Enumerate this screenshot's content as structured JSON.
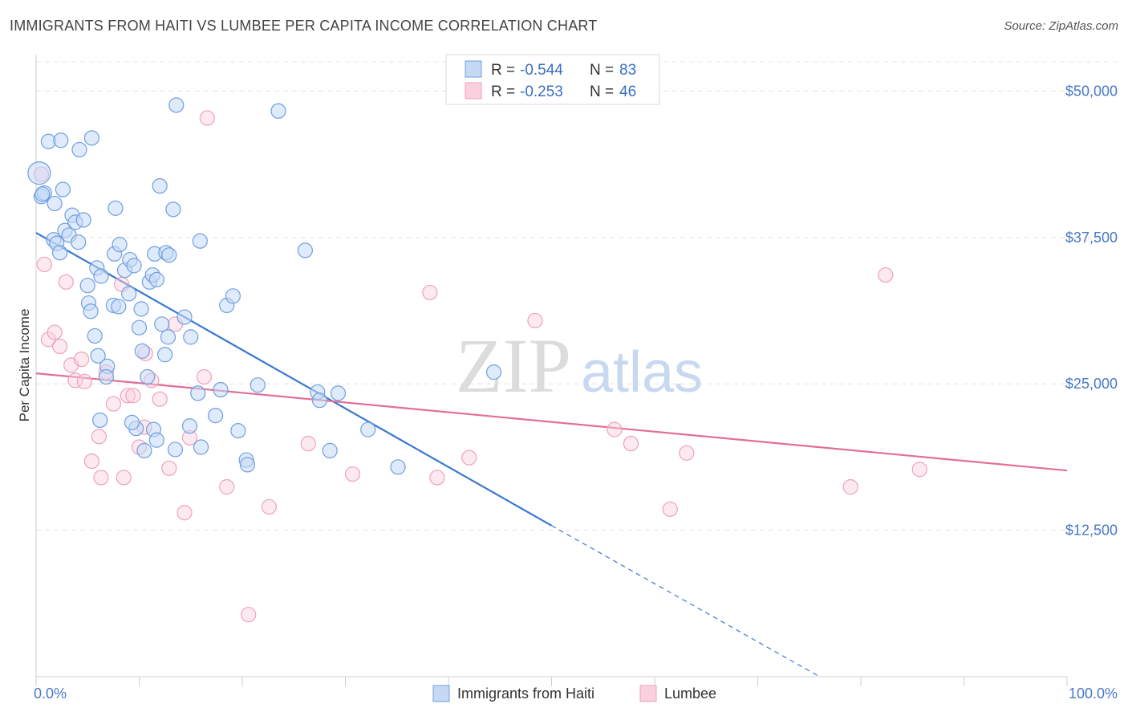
{
  "title": "IMMIGRANTS FROM HAITI VS LUMBEE PER CAPITA INCOME CORRELATION CHART",
  "source": "Source: ZipAtlas.com",
  "watermark": {
    "zip": "ZIP",
    "atlas": "atlas"
  },
  "colors": {
    "haiti": "#6f9fe0",
    "haiti_line": "#3a78d0",
    "lumbee": "#f0a0bb",
    "lumbee_line": "#e26f97",
    "tick": "#4a78c8"
  },
  "chart_data": {
    "type": "scatter",
    "title": "IMMIGRANTS FROM HAITI VS LUMBEE PER CAPITA INCOME CORRELATION CHART",
    "xlabel": "",
    "ylabel": "Per Capita Income",
    "xlim": [
      0,
      100
    ],
    "ylim": [
      0,
      52500
    ],
    "x_tick_labels": [
      "0.0%",
      "100.0%"
    ],
    "y_ticks": [
      12500,
      25000,
      37500,
      50000
    ],
    "y_tick_labels": [
      "$12,500",
      "$25,000",
      "$37,500",
      "$50,000"
    ],
    "grid": true,
    "legend": {
      "placement": "top-center",
      "entries": [
        {
          "r_label": "R = ",
          "r_value": "-0.544",
          "n_label": "N = ",
          "n_value": "83"
        },
        {
          "r_label": "R = ",
          "r_value": "-0.253",
          "n_label": "N = ",
          "n_value": "46"
        }
      ]
    },
    "bottom_legend": [
      "Immigrants from Haiti",
      "Lumbee"
    ],
    "series": [
      {
        "name": "Immigrants from Haiti",
        "trend": {
          "x": [
            0,
            50
          ],
          "y": [
            37900,
            12900
          ],
          "dashed_to": [
            76,
            0
          ]
        },
        "points": [
          [
            0.3,
            43000,
            14
          ],
          [
            0.5,
            41000,
            9
          ],
          [
            0.8,
            41300,
            9
          ],
          [
            1.2,
            45700,
            9
          ],
          [
            1.8,
            40400,
            9
          ],
          [
            2.4,
            45800,
            9
          ],
          [
            2.6,
            41600,
            9
          ],
          [
            1.7,
            37300,
            9
          ],
          [
            2.0,
            37000,
            9
          ],
          [
            2.3,
            36200,
            9
          ],
          [
            2.8,
            38100,
            9
          ],
          [
            3.2,
            37700,
            9
          ],
          [
            3.5,
            39400,
            9
          ],
          [
            3.8,
            38800,
            9
          ],
          [
            4.1,
            37100,
            9
          ],
          [
            4.6,
            39000,
            9
          ],
          [
            4.2,
            45000,
            9
          ],
          [
            5.4,
            46000,
            9
          ],
          [
            5.9,
            34900,
            9
          ],
          [
            6.3,
            34200,
            9
          ],
          [
            5.0,
            33400,
            9
          ],
          [
            5.1,
            31900,
            9
          ],
          [
            5.3,
            31200,
            9
          ],
          [
            5.7,
            29100,
            9
          ],
          [
            6.0,
            27400,
            9
          ],
          [
            6.9,
            26500,
            9
          ],
          [
            6.8,
            25600,
            9
          ],
          [
            7.7,
            40000,
            9
          ],
          [
            7.6,
            36100,
            9
          ],
          [
            8.1,
            36900,
            9
          ],
          [
            8.6,
            34700,
            9
          ],
          [
            9.1,
            35600,
            9
          ],
          [
            9.0,
            32700,
            9
          ],
          [
            7.5,
            31700,
            9
          ],
          [
            8.0,
            31600,
            9
          ],
          [
            9.5,
            35100,
            9
          ],
          [
            10.2,
            31400,
            9
          ],
          [
            10.0,
            29800,
            9
          ],
          [
            10.3,
            27800,
            9
          ],
          [
            11.0,
            33700,
            9
          ],
          [
            11.3,
            34300,
            9
          ],
          [
            11.5,
            36100,
            9
          ],
          [
            11.7,
            33900,
            9
          ],
          [
            12.0,
            41900,
            9
          ],
          [
            12.6,
            36200,
            9
          ],
          [
            12.9,
            36000,
            9
          ],
          [
            12.2,
            30100,
            9
          ],
          [
            12.8,
            29000,
            9
          ],
          [
            13.3,
            39900,
            9
          ],
          [
            13.6,
            48800,
            9
          ],
          [
            14.4,
            30700,
            9
          ],
          [
            15.0,
            29000,
            9
          ],
          [
            15.9,
            37200,
            9
          ],
          [
            10.8,
            25600,
            9
          ],
          [
            12.5,
            27500,
            9
          ],
          [
            11.4,
            21100,
            9
          ],
          [
            11.7,
            20200,
            9
          ],
          [
            10.5,
            19300,
            9
          ],
          [
            9.7,
            21200,
            9
          ],
          [
            9.3,
            21700,
            9
          ],
          [
            6.2,
            21900,
            9
          ],
          [
            13.5,
            19400,
            9
          ],
          [
            14.9,
            21400,
            9
          ],
          [
            16.0,
            19600,
            9
          ],
          [
            17.4,
            22300,
            9
          ],
          [
            17.9,
            24500,
            9
          ],
          [
            18.5,
            31700,
            9
          ],
          [
            19.1,
            32500,
            9
          ],
          [
            19.6,
            21000,
            9
          ],
          [
            20.4,
            18500,
            9
          ],
          [
            20.5,
            18100,
            9
          ],
          [
            21.5,
            24900,
            9
          ],
          [
            23.5,
            48300,
            9
          ],
          [
            26.1,
            36400,
            9
          ],
          [
            27.3,
            24300,
            9
          ],
          [
            27.5,
            23600,
            9
          ],
          [
            28.5,
            19300,
            9
          ],
          [
            29.3,
            24200,
            9
          ],
          [
            32.2,
            21100,
            9
          ],
          [
            35.1,
            17900,
            9
          ],
          [
            44.4,
            26000,
            9
          ],
          [
            15.7,
            24200,
            9
          ],
          [
            0.6,
            41200,
            9
          ]
        ]
      },
      {
        "name": "Lumbee",
        "trend": {
          "x": [
            0,
            100
          ],
          "y": [
            25900,
            17600
          ]
        },
        "points": [
          [
            0.5,
            42900,
            9
          ],
          [
            0.8,
            35200,
            9
          ],
          [
            1.2,
            28800,
            9
          ],
          [
            1.8,
            29400,
            9
          ],
          [
            2.3,
            28200,
            9
          ],
          [
            2.9,
            33700,
            9
          ],
          [
            3.4,
            26600,
            9
          ],
          [
            3.8,
            25300,
            9
          ],
          [
            4.4,
            27100,
            9
          ],
          [
            4.7,
            25200,
            9
          ],
          [
            5.4,
            18400,
            9
          ],
          [
            6.1,
            20500,
            9
          ],
          [
            6.3,
            17000,
            9
          ],
          [
            6.8,
            26000,
            9
          ],
          [
            7.5,
            23300,
            9
          ],
          [
            8.3,
            33500,
            9
          ],
          [
            8.5,
            17000,
            9
          ],
          [
            8.9,
            24000,
            9
          ],
          [
            9.4,
            24000,
            9
          ],
          [
            10.0,
            19600,
            9
          ],
          [
            10.5,
            21300,
            9
          ],
          [
            10.6,
            27600,
            9
          ],
          [
            11.2,
            25300,
            9
          ],
          [
            12.0,
            23700,
            9
          ],
          [
            12.9,
            17800,
            9
          ],
          [
            13.5,
            30100,
            9
          ],
          [
            14.4,
            14000,
            9
          ],
          [
            14.9,
            20400,
            9
          ],
          [
            16.3,
            25600,
            9
          ],
          [
            16.6,
            47700,
            9
          ],
          [
            18.5,
            16200,
            9
          ],
          [
            20.6,
            5300,
            9
          ],
          [
            22.6,
            14500,
            9
          ],
          [
            26.4,
            19900,
            9
          ],
          [
            30.7,
            17300,
            9
          ],
          [
            38.2,
            32800,
            9
          ],
          [
            38.9,
            17000,
            9
          ],
          [
            42.0,
            18700,
            9
          ],
          [
            48.4,
            30400,
            9
          ],
          [
            56.1,
            21100,
            9
          ],
          [
            57.7,
            19900,
            9
          ],
          [
            61.5,
            14300,
            9
          ],
          [
            63.1,
            19100,
            9
          ],
          [
            79.0,
            16200,
            9
          ],
          [
            82.4,
            34300,
            9
          ],
          [
            85.7,
            17700,
            9
          ]
        ]
      }
    ]
  }
}
